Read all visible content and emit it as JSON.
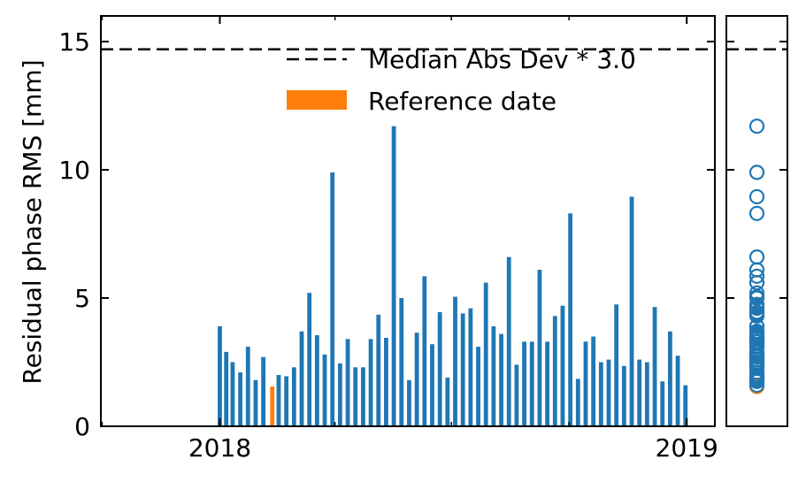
{
  "chart_data": {
    "type": "bar",
    "ylabel": "Residual phase RMS [mm]",
    "xlabel": "",
    "ylim": [
      0,
      16
    ],
    "xlim": [
      "2017-09-30",
      "2019-01-23"
    ],
    "yticks": [
      0,
      5,
      10,
      15
    ],
    "xticks": [
      {
        "date": "2018-01-01",
        "label": "2018"
      },
      {
        "date": "2019-01-01",
        "label": "2019"
      }
    ],
    "threshold": 14.7,
    "legend": {
      "placement": "top-right",
      "entries": [
        {
          "label": "Median Abs Dev * 3.0",
          "style": "dashed-line"
        },
        {
          "label": "Reference date",
          "style": "patch"
        }
      ]
    },
    "colors": {
      "bar": "#1f77b4",
      "reference": "#ff7f0e",
      "threshold": "#000000"
    },
    "reference_date": "2018-02-11",
    "x": [
      "2018-01-01",
      "2018-01-06",
      "2018-01-11",
      "2018-01-17",
      "2018-01-23",
      "2018-01-29",
      "2018-02-04",
      "2018-02-11",
      "2018-02-16",
      "2018-02-22",
      "2018-02-28",
      "2018-03-06",
      "2018-03-12",
      "2018-03-18",
      "2018-03-24",
      "2018-03-30",
      "2018-04-05",
      "2018-04-11",
      "2018-04-17",
      "2018-04-23",
      "2018-04-29",
      "2018-05-05",
      "2018-05-11",
      "2018-05-17",
      "2018-05-23",
      "2018-05-29",
      "2018-06-04",
      "2018-06-10",
      "2018-06-16",
      "2018-06-22",
      "2018-06-28",
      "2018-07-04",
      "2018-07-10",
      "2018-07-16",
      "2018-07-22",
      "2018-07-28",
      "2018-08-03",
      "2018-08-09",
      "2018-08-15",
      "2018-08-21",
      "2018-08-27",
      "2018-09-02",
      "2018-09-08",
      "2018-09-14",
      "2018-09-20",
      "2018-09-26",
      "2018-10-02",
      "2018-10-08",
      "2018-10-14",
      "2018-10-20",
      "2018-10-26",
      "2018-11-01",
      "2018-11-07",
      "2018-11-13",
      "2018-11-19",
      "2018-11-25",
      "2018-12-01",
      "2018-12-07",
      "2018-12-13",
      "2018-12-19",
      "2018-12-25",
      "2018-12-31"
    ],
    "values": [
      3.9,
      2.9,
      2.5,
      2.1,
      3.1,
      1.8,
      2.7,
      1.55,
      2.0,
      1.95,
      2.3,
      3.7,
      5.2,
      3.55,
      2.8,
      9.9,
      2.45,
      3.4,
      2.3,
      2.3,
      3.4,
      4.35,
      3.45,
      11.7,
      5.0,
      1.8,
      3.65,
      5.85,
      3.2,
      4.45,
      1.9,
      5.05,
      4.4,
      4.6,
      3.1,
      5.6,
      3.9,
      3.6,
      6.6,
      2.4,
      3.3,
      3.3,
      6.1,
      3.3,
      4.3,
      4.7,
      8.3,
      1.85,
      3.3,
      3.5,
      2.5,
      2.6,
      4.75,
      2.35,
      8.95,
      2.6,
      2.5,
      4.65,
      1.75,
      3.7,
      2.75,
      1.6
    ]
  }
}
